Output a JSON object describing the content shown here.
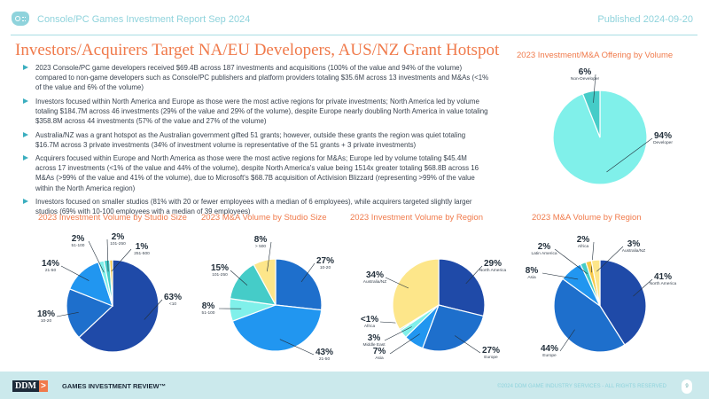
{
  "header": {
    "report_title": "Console/PC Games Investment Report Sep 2024",
    "published": "Published 2024-09-20",
    "logo_icon": "gamepad-icon"
  },
  "main_title": "Investors/Acquirers Target NA/EU Developers, AUS/NZ Grant Hotspot",
  "bullets": [
    "2023 Console/PC game developers received $69.4B across 187 investments and acquisitions (100% of the value and 94% of the volume) compared to non-game developers such as Console/PC publishers and platform providers totaling $35.6M across 13 investments and M&As (<1% of the value and 6% of the volume)",
    "Investors focused within North America and Europe as those were the most active regions for private investments; North America led by volume totaling $184.7M across 46 investments (29% of the value and 29% of the volume), despite Europe nearly doubling North America in value totaling $358.8M across 44 investments (57% of the value and 27% of the volume)",
    "Australia/NZ was a grant hotspot as the Australian government gifted 51 grants; however, outside these grants the region was quiet totaling $16.7M across 3 private investments (34% of investment volume is representative of the 51 grants + 3 private investments)",
    "Acquirers focused within Europe and North America as those were the most active regions for M&As; Europe led by volume totaling $45.4M across 17 investments (<1% of the value and 44% of the volume), despite North America's value being 1514x greater totaling $68.8B across 16 M&As (>99% of the value and 41% of the volume), due to Microsoft's $68.7B acquisition of Activision Blizzard (representing >99% of the value within the North America region)",
    "Investors focused on smaller studios (81% with 20 or fewer employees with a median of 6 employees), while acquirers targeted slightly larger studios (69% with 10-100 employees with a median of 39 employees)"
  ],
  "colors": {
    "accent": "#f07a4b",
    "header": "#8fd3dc",
    "footer_bg": "#cbe9ec"
  },
  "chart_data": [
    {
      "type": "pie",
      "title": "2023 Investment/M&A Offering by Volume",
      "slices": [
        {
          "label": "Developer",
          "pct_text": "94%",
          "value": 94,
          "color": "#80f0ea"
        },
        {
          "label": "Non-Developer",
          "pct_text": "6%",
          "value": 6,
          "color": "#45ccc8"
        }
      ]
    },
    {
      "type": "pie",
      "title": "2023 Investment Volume by Studio Size",
      "slices": [
        {
          "label": "<10",
          "pct_text": "63%",
          "value": 63,
          "color": "#1f4aa8"
        },
        {
          "label": "10-20",
          "pct_text": "18%",
          "value": 18,
          "color": "#1e6fcc"
        },
        {
          "label": "21-50",
          "pct_text": "14%",
          "value": 14,
          "color": "#2196f0"
        },
        {
          "label": "51-100",
          "pct_text": "2%",
          "value": 2,
          "color": "#80f0ea"
        },
        {
          "label": "101-250",
          "pct_text": "2%",
          "value": 2,
          "color": "#45ccc8"
        },
        {
          "label": "251-500",
          "pct_text": "1%",
          "value": 1,
          "color": "#f7c948"
        }
      ]
    },
    {
      "type": "pie",
      "title": "2023 M&A Volume by Studio Size",
      "slices": [
        {
          "label": "10-20",
          "pct_text": "27%",
          "value": 27,
          "color": "#1e6fcc"
        },
        {
          "label": "21-50",
          "pct_text": "43%",
          "value": 43,
          "color": "#2196f0"
        },
        {
          "label": "51-100",
          "pct_text": "8%",
          "value": 8,
          "color": "#80f0ea"
        },
        {
          "label": "101-250",
          "pct_text": "15%",
          "value": 15,
          "color": "#45ccc8"
        },
        {
          "label": "> 500",
          "pct_text": "8%",
          "value": 8,
          "color": "#fde68a"
        }
      ]
    },
    {
      "type": "pie",
      "title": "2023 Investment Volume by Region",
      "slices": [
        {
          "label": "North America",
          "pct_text": "29%",
          "value": 29,
          "color": "#1f4aa8"
        },
        {
          "label": "Europe",
          "pct_text": "27%",
          "value": 27,
          "color": "#1e6fcc"
        },
        {
          "label": "Asia",
          "pct_text": "7%",
          "value": 7,
          "color": "#2196f0"
        },
        {
          "label": "Middle East",
          "pct_text": "3%",
          "value": 3,
          "color": "#80f0ea"
        },
        {
          "label": "Africa",
          "pct_text": "<1%",
          "value": 0.5,
          "color": "#45ccc8"
        },
        {
          "label": "Australia/NZ",
          "pct_text": "34%",
          "value": 34,
          "color": "#fde68a"
        }
      ]
    },
    {
      "type": "pie",
      "title": "2023 M&A Volume by Region",
      "slices": [
        {
          "label": "North America",
          "pct_text": "41%",
          "value": 41,
          "color": "#1f4aa8"
        },
        {
          "label": "Europe",
          "pct_text": "44%",
          "value": 44,
          "color": "#1e6fcc"
        },
        {
          "label": "Asia",
          "pct_text": "8%",
          "value": 8,
          "color": "#2196f0"
        },
        {
          "label": "Latin America",
          "pct_text": "2%",
          "value": 2,
          "color": "#45ccc8"
        },
        {
          "label": "Africa",
          "pct_text": "2%",
          "value": 2,
          "color": "#f7c948"
        },
        {
          "label": "Australia/NZ",
          "pct_text": "3%",
          "value": 3,
          "color": "#fde68a"
        }
      ]
    }
  ],
  "footer": {
    "brand": "DDM",
    "brand_arrow": ">",
    "product": "GAMES INVESTMENT REVIEW™",
    "copyright": "©2024 DDM GAME INDUSTRY SERVICES - ALL RIGHTS RESERVED",
    "page": "9"
  }
}
